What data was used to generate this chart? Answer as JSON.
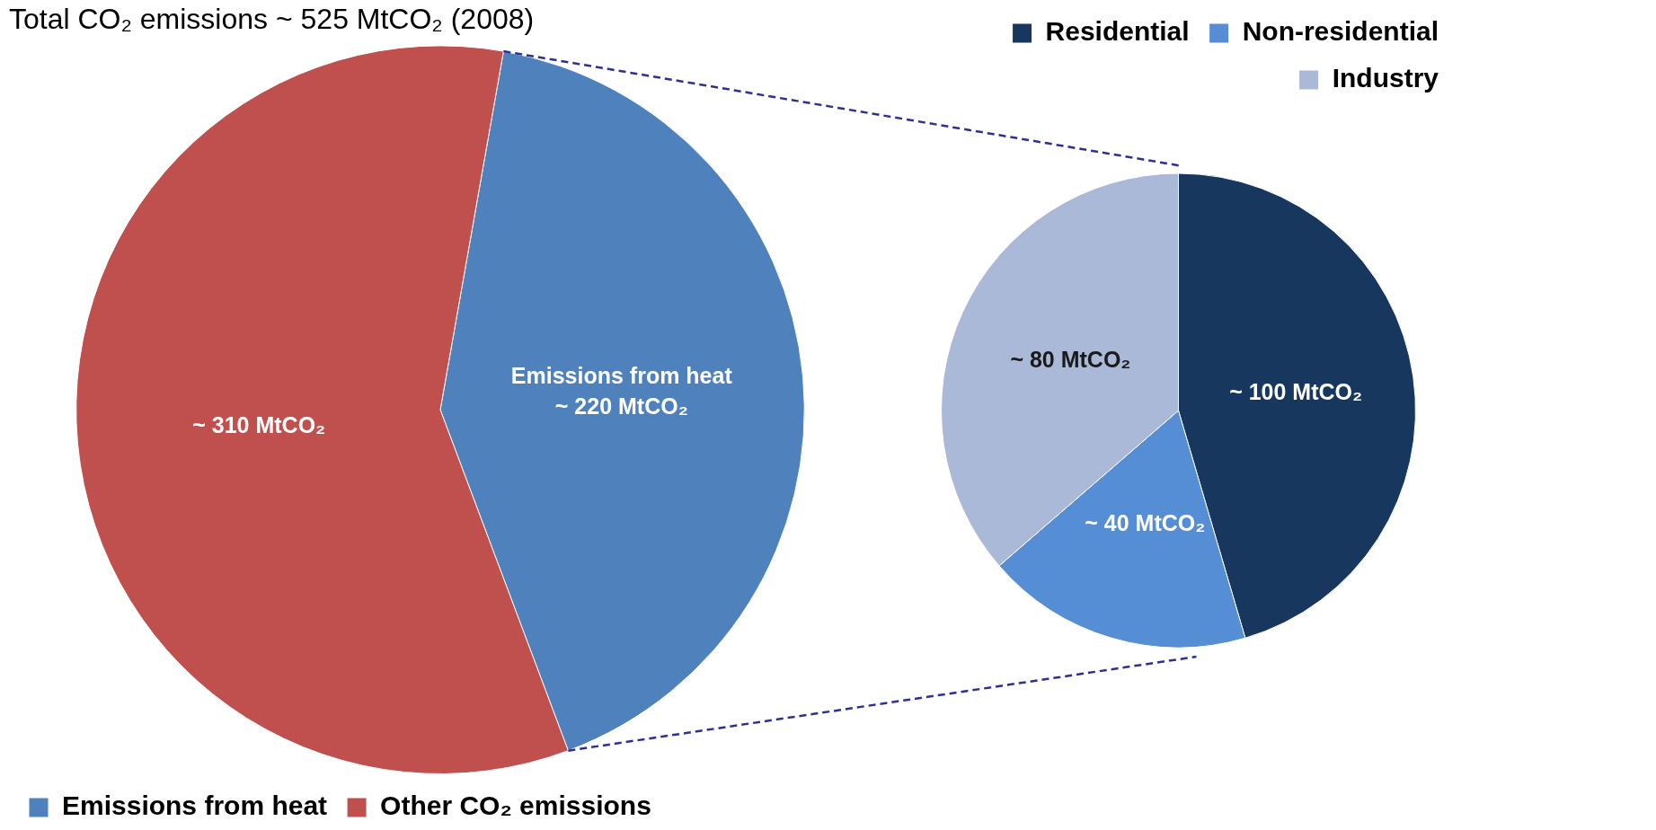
{
  "chart_data": [
    {
      "type": "pie",
      "title": "Total CO₂ emissions ~ 525 MtCO₂ (2008)",
      "categories": [
        "Emissions from heat",
        "Other CO₂ emissions"
      ],
      "values": [
        220,
        310
      ],
      "colors": [
        "#4f81bd",
        "#c0504d"
      ],
      "value_labels": [
        "Emissions from heat ~ 220 MtCO₂",
        "~ 310 MtCO₂"
      ],
      "legend": "bottom"
    },
    {
      "type": "pie",
      "categories": [
        "Residential",
        "Non-residential",
        "Industry"
      ],
      "values": [
        100,
        40,
        80
      ],
      "colors": [
        "#17375e",
        "#558ed5",
        "#a9b9d7"
      ],
      "value_labels": [
        "~ 100 MtCO₂",
        "~ 40 MtCO₂",
        "~ 80 MtCO₂"
      ],
      "legend": "top"
    }
  ]
}
